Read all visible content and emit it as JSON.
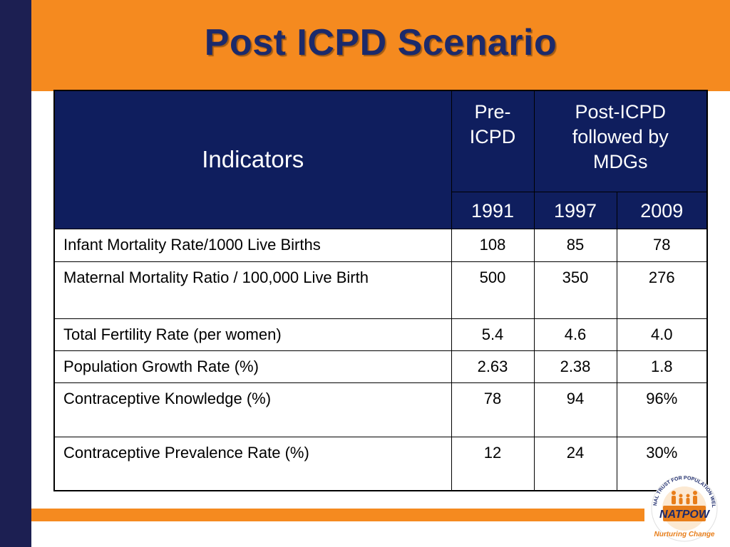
{
  "slide": {
    "title": "Post ICPD Scenario"
  },
  "table": {
    "header": {
      "indicators": "Indicators",
      "pre_icpd": "Pre-\nICPD",
      "post_icpd": "Post-ICPD\nfollowed by\nMDGs",
      "years": [
        "1991",
        "1997",
        "2009"
      ]
    },
    "rows": [
      {
        "indicator": "Infant Mortality Rate/1000 Live Births",
        "values": [
          "108",
          "85",
          "78"
        ]
      },
      {
        "indicator": "Maternal Mortality Ratio / 100,000 Live Birth",
        "values": [
          "500",
          "350",
          "276"
        ]
      },
      {
        "indicator": "Total Fertility Rate (per women)",
        "values": [
          "5.4",
          "4.6",
          "4.0"
        ]
      },
      {
        "indicator": "Population Growth Rate (%)",
        "values": [
          "2.63",
          "2.38",
          "1.8"
        ]
      },
      {
        "indicator": "Contraceptive Knowledge (%)",
        "values": [
          "78",
          "94",
          "96%"
        ]
      },
      {
        "indicator": "Contraceptive Prevalence Rate (%)",
        "values": [
          "12",
          "24",
          "30%"
        ]
      }
    ]
  },
  "logo": {
    "ring_text": "NATIONAL TRUST FOR POPULATION WELFARE",
    "wordmark": "NATPOW",
    "tagline": "Nurturing Change"
  },
  "colors": {
    "accent_orange": "#f58a1f",
    "navy": "#1c1f52",
    "header_blue": "#0f1e5e",
    "title_blue": "#1c2a6b"
  }
}
